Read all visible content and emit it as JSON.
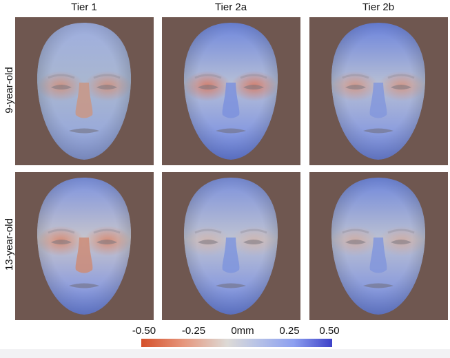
{
  "columns": [
    "Tier 1",
    "Tier 2a",
    "Tier 2b"
  ],
  "rows": [
    "9-year-old",
    "13-year-old"
  ],
  "colorbar": {
    "ticks": [
      "-0.50",
      "-0.25",
      "0mm",
      "0.25",
      "0.50"
    ],
    "min_color": "#d5502a",
    "mid_color": "#dddad6",
    "max_color": "#3d41c8"
  },
  "panel_background": "#6f5750",
  "panels": [
    {
      "row": "9-year-old",
      "column": "Tier 1",
      "content": "face-heatmap"
    },
    {
      "row": "9-year-old",
      "column": "Tier 2a",
      "content": "face-heatmap"
    },
    {
      "row": "9-year-old",
      "column": "Tier 2b",
      "content": "face-heatmap"
    },
    {
      "row": "13-year-old",
      "column": "Tier 1",
      "content": "face-heatmap"
    },
    {
      "row": "13-year-old",
      "column": "Tier 2a",
      "content": "face-heatmap"
    },
    {
      "row": "13-year-old",
      "column": "Tier 2b",
      "content": "face-heatmap"
    }
  ]
}
